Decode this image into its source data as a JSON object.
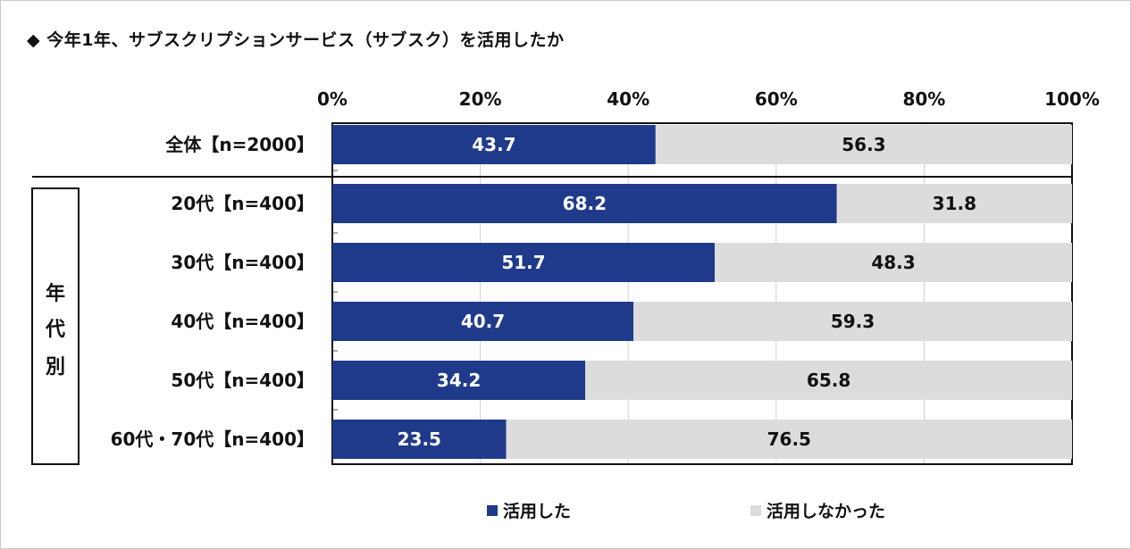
{
  "title": "◆ 今年1年、サブスクリプションサービス（サブスク）を活用したか",
  "colors": {
    "used": "#1f3a8a",
    "not_used": "#dcdcdc",
    "used_text": "#ffffff",
    "not_used_text": "#111111"
  },
  "chart_data": {
    "type": "bar",
    "orientation": "horizontal",
    "stacked": "percent",
    "categories": [
      "全体【n=2000】",
      "20代【n=400】",
      "30代【n=400】",
      "40代【n=400】",
      "50代【n=400】",
      "60代・70代【n=400】"
    ],
    "series": [
      {
        "name": "活用した",
        "values": [
          43.7,
          68.2,
          51.7,
          40.7,
          34.2,
          23.5
        ]
      },
      {
        "name": "活用しなかった",
        "values": [
          56.3,
          31.8,
          48.3,
          59.3,
          65.8,
          76.5
        ]
      }
    ],
    "x_ticks": [
      "0%",
      "20%",
      "40%",
      "60%",
      "80%",
      "100%"
    ],
    "xlim": [
      0,
      100
    ],
    "group_label": "年代別",
    "legend_position": "bottom",
    "grid": "vertical"
  }
}
